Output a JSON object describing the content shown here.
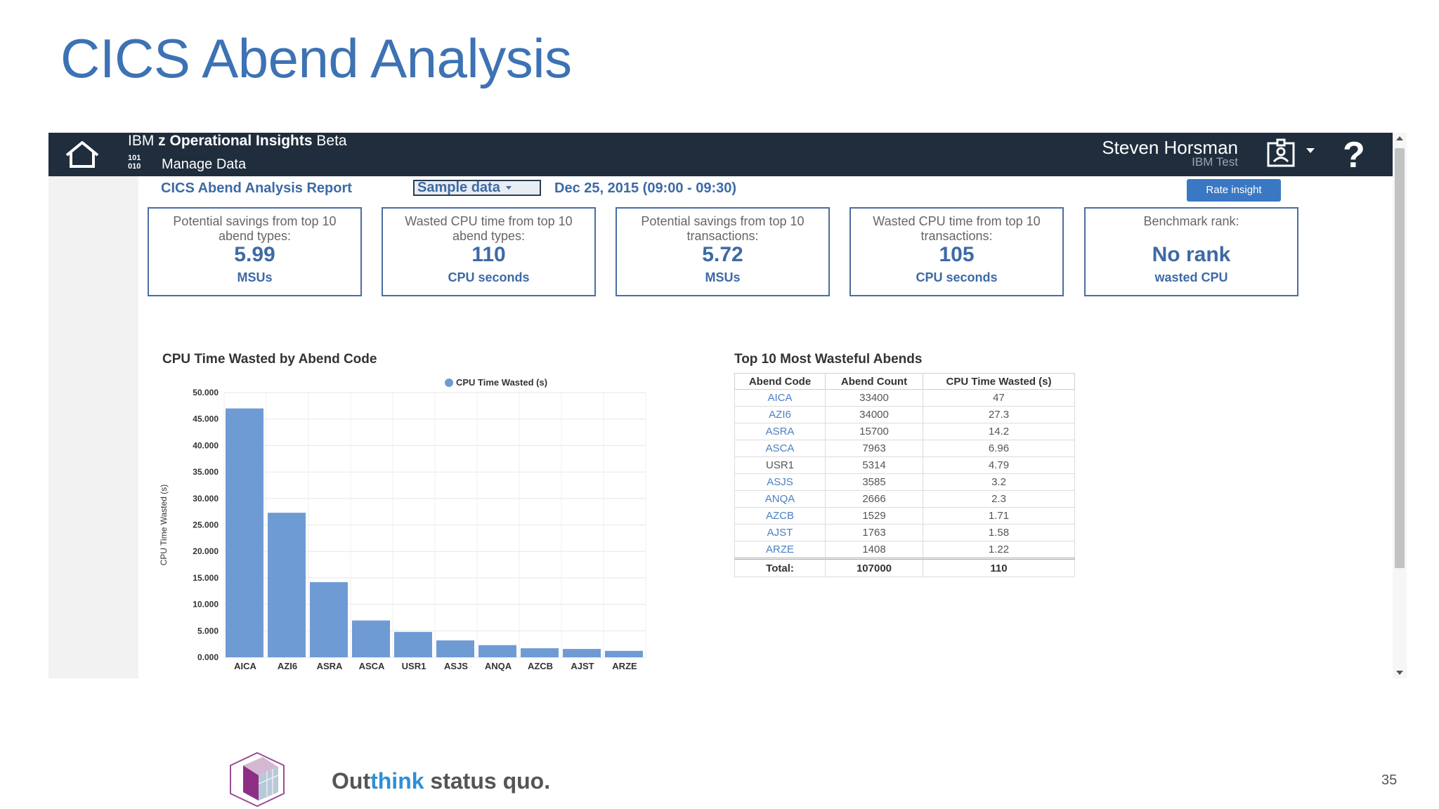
{
  "slide": {
    "title": "CICS Abend Analysis",
    "page_number": "35",
    "tagline_pre": "Out",
    "tagline_highlight": "think",
    "tagline_post": " status quo."
  },
  "app": {
    "product_prefix": "IBM ",
    "product_bold": "z Operational Insights",
    "product_suffix": " Beta",
    "binary_line1": "101",
    "binary_line2": "010",
    "manage_label": "Manage Data",
    "user_name": "Steven Horsman",
    "user_org": "IBM Test",
    "help_glyph": "?",
    "icons": {
      "home": "home-icon",
      "badge": "user-badge-icon",
      "caret": "chevron-down-icon",
      "help": "help-icon"
    }
  },
  "report": {
    "title": "CICS Abend Analysis Report",
    "sample_select": "Sample data",
    "date_range": "Dec 25, 2015 (09:00 - 09:30)",
    "rate_button": "Rate insight"
  },
  "kpis": [
    {
      "label": "Potential savings from top 10 abend types:",
      "value": "5.99",
      "unit": "MSUs"
    },
    {
      "label": "Wasted CPU time from top 10 abend types:",
      "value": "110",
      "unit": "CPU seconds"
    },
    {
      "label": "Potential savings from top 10 transactions:",
      "value": "5.72",
      "unit": "MSUs"
    },
    {
      "label": "Wasted CPU time from top 10 transactions:",
      "value": "105",
      "unit": "CPU seconds"
    },
    {
      "label": "Benchmark rank:",
      "value": "No rank",
      "unit": "wasted CPU"
    }
  ],
  "chart_data": {
    "type": "bar",
    "title": "CPU Time Wasted by Abend Code",
    "ylabel": "CPU Time Wasted (s)",
    "xlabel": "",
    "legend": "top-right",
    "grid": true,
    "categories": [
      "AICA",
      "AZI6",
      "ASRA",
      "ASCA",
      "USR1",
      "ASJS",
      "ANQA",
      "AZCB",
      "AJST",
      "ARZE"
    ],
    "series": [
      {
        "name": "CPU Time Wasted (s)",
        "values": [
          47,
          27.3,
          14.2,
          6.96,
          4.79,
          3.2,
          2.3,
          1.71,
          1.58,
          1.22
        ],
        "color": "#6f9bd4"
      }
    ],
    "ylim": [
      0,
      50
    ],
    "yticks": [
      "0.000",
      "5.000",
      "10.000",
      "15.000",
      "20.000",
      "25.000",
      "30.000",
      "35.000",
      "40.000",
      "45.000",
      "50.000"
    ]
  },
  "table": {
    "title": "Top 10 Most Wasteful Abends",
    "headers": [
      "Abend Code",
      "Abend Count",
      "CPU Time Wasted (s)"
    ],
    "rows": [
      {
        "code": "AICA",
        "count": "33400",
        "cpu": "47",
        "link": true
      },
      {
        "code": "AZI6",
        "count": "34000",
        "cpu": "27.3",
        "link": true
      },
      {
        "code": "ASRA",
        "count": "15700",
        "cpu": "14.2",
        "link": true
      },
      {
        "code": "ASCA",
        "count": "7963",
        "cpu": "6.96",
        "link": true
      },
      {
        "code": "USR1",
        "count": "5314",
        "cpu": "4.79",
        "link": false
      },
      {
        "code": "ASJS",
        "count": "3585",
        "cpu": "3.2",
        "link": true
      },
      {
        "code": "ANQA",
        "count": "2666",
        "cpu": "2.3",
        "link": true
      },
      {
        "code": "AZCB",
        "count": "1529",
        "cpu": "1.71",
        "link": true
      },
      {
        "code": "AJST",
        "count": "1763",
        "cpu": "1.58",
        "link": true
      },
      {
        "code": "ARZE",
        "count": "1408",
        "cpu": "1.22",
        "link": true
      }
    ],
    "total": {
      "label": "Total:",
      "count": "107000",
      "cpu": "110"
    }
  }
}
